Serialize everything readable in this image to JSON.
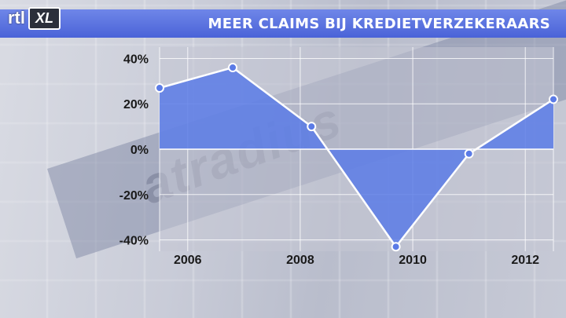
{
  "header": {
    "logo_text": "rtl",
    "logo_badge": "XL",
    "title": "MEER CLAIMS BIJ KREDIETVERZEKERAARS"
  },
  "background": {
    "watermark_text": "atradius"
  },
  "colors": {
    "banner": "#4a63d8",
    "fill": "#5b7be6",
    "line": "#ffffff",
    "gridline": "#ffffff",
    "plot_background": "#c4c7d4"
  },
  "chart_data": {
    "type": "area",
    "title": "MEER CLAIMS BIJ KREDIETVERZEKERAARS",
    "xlabel": "",
    "ylabel": "",
    "x": [
      2005.5,
      2006.8,
      2008.2,
      2009.7,
      2011.0,
      2012.5
    ],
    "values": [
      27,
      36,
      10,
      -43,
      -2,
      22
    ],
    "x_ticks": [
      "2006",
      "2008",
      "2010",
      "2012"
    ],
    "x_tick_values": [
      2006,
      2008,
      2010,
      2012
    ],
    "y_ticks": [
      "40%",
      "20%",
      "0%",
      "-20%",
      "-40%"
    ],
    "y_tick_values": [
      40,
      20,
      0,
      -20,
      -40
    ],
    "xlim": [
      2005.5,
      2012.5
    ],
    "ylim": [
      -45,
      45
    ],
    "grid": true,
    "legend": "none"
  }
}
